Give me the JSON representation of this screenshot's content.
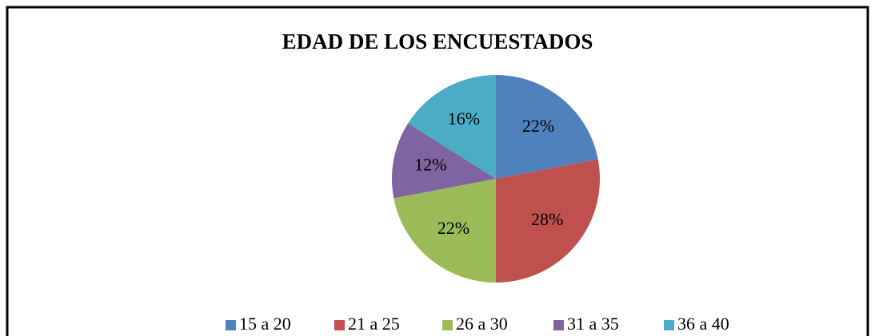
{
  "chart_data": {
    "type": "pie",
    "title": "EDAD DE LOS ENCUESTADOS",
    "categories": [
      "15 a 20",
      "21 a 25",
      "26 a 30",
      "31 a 35",
      "36 a 40"
    ],
    "values": [
      22,
      28,
      22,
      12,
      16
    ],
    "value_labels": [
      "22%",
      "28%",
      "22%",
      "12%",
      "16%"
    ],
    "colors": [
      "#4f81bd",
      "#c0504d",
      "#9bbb59",
      "#8064a2",
      "#4bacc6"
    ],
    "legend": "bottom"
  }
}
